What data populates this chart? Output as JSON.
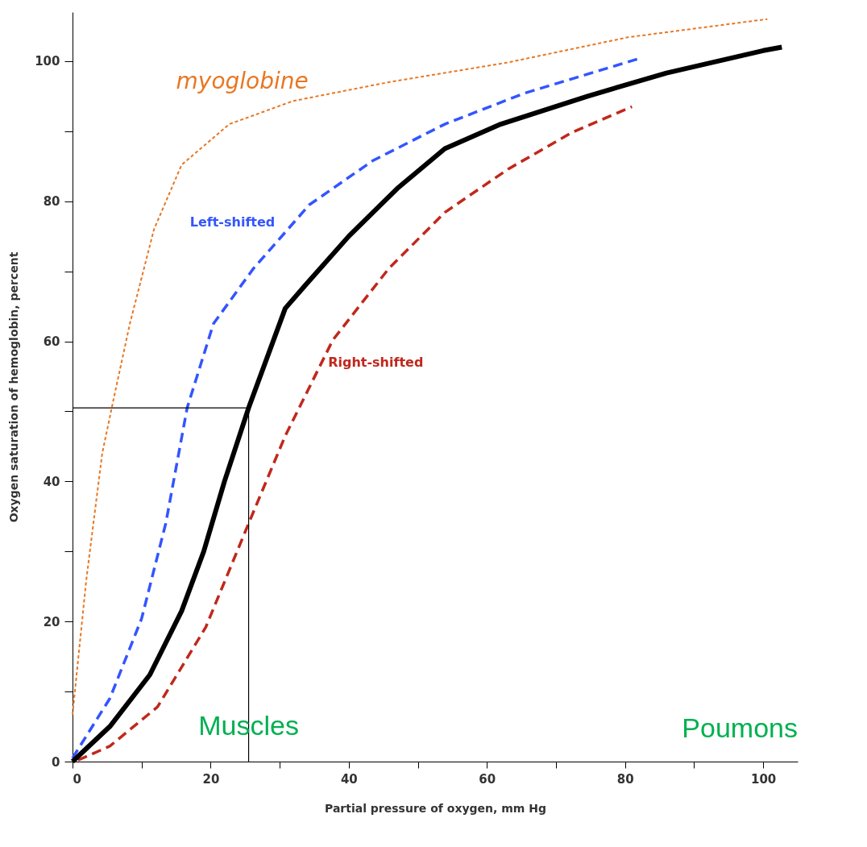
{
  "chart_data": {
    "type": "line",
    "xlabel": "Partial pressure of oxygen, mm Hg",
    "ylabel": "Oxygen saturation of hemoglobin, percent",
    "xlim": [
      0,
      105
    ],
    "ylim": [
      0,
      107
    ],
    "xticks": [
      0,
      {
        "value": 10,
        "label": null
      },
      20,
      {
        "value": 30,
        "label": null
      },
      40,
      {
        "value": 50,
        "label": null
      },
      60,
      {
        "value": 70,
        "label": null
      },
      80,
      {
        "value": 90,
        "label": null
      },
      100
    ],
    "yticks": [
      0,
      {
        "value": 10,
        "label": null
      },
      20,
      {
        "value": 30,
        "label": null
      },
      40,
      {
        "value": 50,
        "label": null
      },
      60,
      {
        "value": 70,
        "label": null
      },
      80,
      {
        "value": 90,
        "label": null
      },
      100
    ],
    "grid": false,
    "marker": "none",
    "series": [
      {
        "name": "myoglobine",
        "color": "#e87722",
        "line_style": "dotted",
        "x": [
          0,
          2,
          4.3,
          6,
          8.3,
          11.8,
          15.8,
          22.7,
          31.9,
          45.8,
          63,
          80.4,
          100.6
        ],
        "values": [
          6.7,
          26,
          44,
          52,
          62.5,
          76,
          85.2,
          91,
          94.3,
          97,
          99.8,
          103.4,
          106
        ]
      },
      {
        "name": "Left-shifted",
        "color": "#3355ff",
        "line_style": "dashed",
        "x": [
          0,
          5.4,
          10,
          13.5,
          16.6,
          20.4,
          26.2,
          34.3,
          43.5,
          53.9,
          65.4,
          81.8
        ],
        "values": [
          0.5,
          9,
          20.4,
          34,
          50.5,
          62.5,
          70.4,
          79.5,
          85.8,
          91,
          95.4,
          100.3
        ]
      },
      {
        "name": "Right-shifted",
        "color": "#c0281c",
        "line_style": "dashed",
        "x": [
          0.8,
          5.4,
          12.3,
          19.3,
          25.5,
          30.8,
          37.7,
          45.8,
          53.9,
          63.1,
          72.3,
          81
        ],
        "values": [
          0.2,
          2.2,
          7.8,
          19.2,
          34,
          46.5,
          60.2,
          70.4,
          78.4,
          84.6,
          89.8,
          93.5
        ]
      },
      {
        "color": "#000000",
        "line_style": "solid",
        "x": [
          0,
          5.4,
          11.2,
          15.8,
          19,
          22,
          25.5,
          30.8,
          33.7,
          40,
          47,
          53.9,
          62,
          74.6,
          86,
          100,
          102.7
        ],
        "values": [
          0,
          5,
          12.4,
          21.5,
          30,
          40,
          50.5,
          64.7,
          68,
          75,
          81.8,
          87.5,
          91,
          95,
          98.3,
          101.5,
          102
        ]
      },
      {
        "color": "#000000",
        "line_style": "solid",
        "x": [
          0,
          25.5,
          25.5
        ],
        "values": [
          50.5,
          50.5,
          0
        ]
      }
    ],
    "annotations": [
      {
        "text": "Muscles",
        "x": 25.5,
        "y": 5
      },
      "Poumons"
    ]
  }
}
